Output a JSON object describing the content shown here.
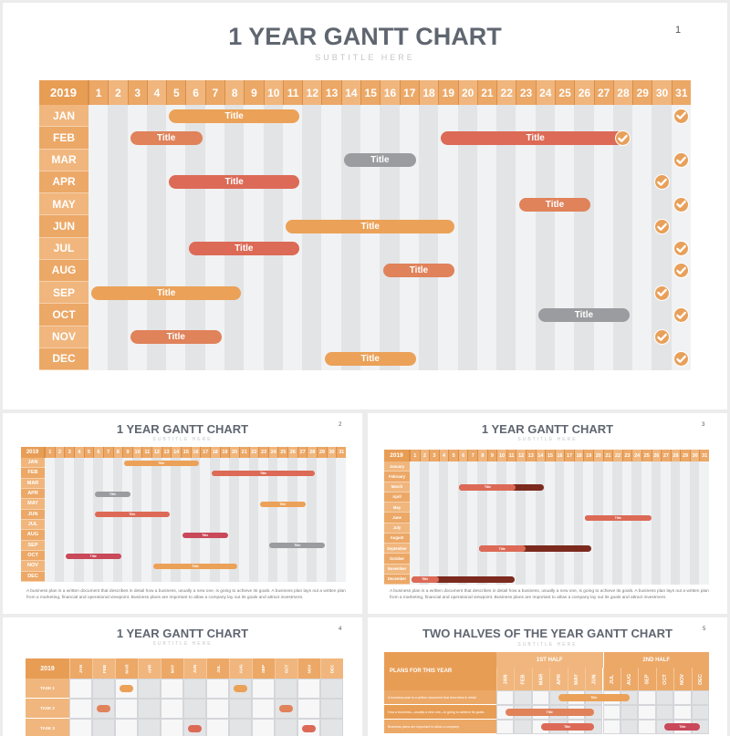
{
  "colors": {
    "header": "#eca867",
    "header_alt": "#f0b67d",
    "year_cell": "#e89d55",
    "col_light": "#f1f2f3",
    "col_dark": "#e3e4e6",
    "bar_orange": "#eba157",
    "bar_coral": "#e0825a",
    "bar_red": "#dc6a56",
    "bar_gray": "#9a9ca0",
    "bar_crimson": "#c9485a",
    "bar_darkred": "#7c2a1e",
    "check": "#e8a05a"
  },
  "slides": [
    {
      "title": "1 YEAR GANTT CHART",
      "subtitle": "SUBTITLE HERE",
      "number": "1"
    },
    {
      "title": "1 YEAR GANTT CHART",
      "subtitle": "SUBTITLE HERE",
      "number": "2",
      "paragraph": "A business plan is a written document that describes in detail how a business, usually a new one, is going to achieve its goals. A business plan lays out a written plan from a marketing, financial and operational viewpoint. Business plans are important to allow a company lay out its goals and attract investment."
    },
    {
      "title": "1 YEAR GANTT CHART",
      "subtitle": "SUBTITLE HERE",
      "number": "3",
      "paragraph": "A business plan is a written document that describes in detail how a business, usually a new one, is going to achieve its goals. A business plan lays out a written plan from a marketing, financial and operational viewpoint. Business plans are important to allow a company lay out its goals and attract investment."
    },
    {
      "title": "1 YEAR GANTT CHART",
      "subtitle": "SUBTITLE HERE",
      "number": "4"
    },
    {
      "title": "TWO HALVES OF THE YEAR GANTT CHART",
      "subtitle": "SUBTITLE HERE",
      "number": "5",
      "plans_label": "PLANS FOR THIS YEAR",
      "half1": "1ST HALF",
      "half2": "2ND HALF",
      "rows": [
        "A business plan is a written document that describes in detail",
        "How a business—usually a new one—is going to achieve its goals.",
        "Business plans are important to allow a company"
      ]
    }
  ],
  "chart_data": [
    {
      "type": "gantt",
      "title": "1 YEAR GANTT CHART",
      "subtitle": "SUBTITLE HERE",
      "year": "2019",
      "x": [
        "1",
        "2",
        "3",
        "4",
        "5",
        "6",
        "7",
        "8",
        "9",
        "10",
        "11",
        "12",
        "13",
        "14",
        "15",
        "16",
        "17",
        "18",
        "19",
        "20",
        "21",
        "22",
        "23",
        "24",
        "25",
        "26",
        "27",
        "28",
        "29",
        "30",
        "31"
      ],
      "categories": [
        "JAN",
        "FEB",
        "MAR",
        "APR",
        "MAY",
        "JUN",
        "JUL",
        "AUG",
        "SEP",
        "OCT",
        "NOV",
        "DEC"
      ],
      "tasks": [
        {
          "month": "JAN",
          "label": "Title",
          "start": 5,
          "end": 11,
          "color": "orange",
          "check_day": 31
        },
        {
          "month": "FEB",
          "label": "Title",
          "start": 3,
          "end": 6,
          "color": "coral",
          "check_day": null
        },
        {
          "month": "FEB",
          "label": "Title",
          "start": 19,
          "end": 28,
          "color": "red",
          "check_day": 28
        },
        {
          "month": "MAR",
          "label": "Title",
          "start": 14,
          "end": 17,
          "color": "gray",
          "check_day": 31
        },
        {
          "month": "APR",
          "label": "Title",
          "start": 5,
          "end": 11,
          "color": "red",
          "check_day": 30
        },
        {
          "month": "MAY",
          "label": "Title",
          "start": 23,
          "end": 26,
          "color": "coral",
          "check_day": 31
        },
        {
          "month": "JUN",
          "label": "Title",
          "start": 11,
          "end": 19,
          "color": "orange",
          "check_day": 30
        },
        {
          "month": "JUL",
          "label": "Title",
          "start": 6,
          "end": 11,
          "color": "red",
          "check_day": 31
        },
        {
          "month": "AUG",
          "label": "Title",
          "start": 16,
          "end": 19,
          "color": "coral",
          "check_day": 31
        },
        {
          "month": "SEP",
          "label": "Title",
          "start": 1,
          "end": 8,
          "color": "orange",
          "check_day": 30
        },
        {
          "month": "OCT",
          "label": "Title",
          "start": 24,
          "end": 28,
          "color": "gray",
          "check_day": 31
        },
        {
          "month": "NOV",
          "label": "Title",
          "start": 3,
          "end": 7,
          "color": "coral",
          "check_day": 30
        },
        {
          "month": "DEC",
          "label": "Title",
          "start": 13,
          "end": 17,
          "color": "orange",
          "check_day": 31
        }
      ]
    },
    {
      "type": "gantt",
      "title": "1 YEAR GANTT CHART",
      "year": "2019",
      "x": [
        "1",
        "2",
        "3",
        "4",
        "5",
        "6",
        "7",
        "8",
        "9",
        "10",
        "11",
        "12",
        "13",
        "14",
        "15",
        "16",
        "17",
        "18",
        "19",
        "20",
        "21",
        "22",
        "23",
        "24",
        "25",
        "26",
        "27",
        "28",
        "29",
        "30",
        "31"
      ],
      "categories": [
        "JAN",
        "FEB",
        "MAR",
        "APR",
        "MAY",
        "JUN",
        "JUL",
        "AUG",
        "SEP",
        "OCT",
        "NOV",
        "DEC"
      ],
      "tasks": [
        {
          "month": "JAN",
          "label": "Title",
          "start": 9,
          "end": 16,
          "color": "orange"
        },
        {
          "month": "FEB",
          "label": "Title",
          "start": 18,
          "end": 28,
          "color": "red"
        },
        {
          "month": "APR",
          "label": "Title",
          "start": 6,
          "end": 9,
          "color": "gray"
        },
        {
          "month": "MAY",
          "label": "Title",
          "start": 23,
          "end": 27,
          "color": "orange"
        },
        {
          "month": "JUN",
          "label": "Title",
          "start": 6,
          "end": 13,
          "color": "red"
        },
        {
          "month": "AUG",
          "label": "Title",
          "start": 15,
          "end": 19,
          "color": "crimson"
        },
        {
          "month": "SEP",
          "label": "Title",
          "start": 24,
          "end": 29,
          "color": "gray"
        },
        {
          "month": "OCT",
          "label": "Title",
          "start": 3,
          "end": 8,
          "color": "crimson"
        },
        {
          "month": "NOV",
          "label": "Title",
          "start": 12,
          "end": 20,
          "color": "orange"
        }
      ]
    },
    {
      "type": "gantt",
      "title": "1 YEAR GANTT CHART",
      "year": "2019",
      "x": [
        "1",
        "2",
        "3",
        "4",
        "5",
        "6",
        "7",
        "8",
        "9",
        "10",
        "11",
        "12",
        "13",
        "14",
        "15",
        "16",
        "17",
        "18",
        "19",
        "20",
        "21",
        "22",
        "23",
        "24",
        "25",
        "26",
        "27",
        "28",
        "29",
        "30",
        "31"
      ],
      "categories": [
        "January",
        "February",
        "March",
        "April",
        "May",
        "June",
        "July",
        "August",
        "September",
        "October",
        "November",
        "December"
      ],
      "tasks": [
        {
          "month": "March",
          "label": "Title",
          "start": 6,
          "end": 14,
          "progress_end": 11
        },
        {
          "month": "June",
          "label": "Title",
          "start": 19,
          "end": 25,
          "progress_end": 25
        },
        {
          "month": "September",
          "label": "Title",
          "start": 8,
          "end": 19,
          "progress_end": 12
        },
        {
          "month": "December",
          "label": "Title",
          "start": 1,
          "end": 11,
          "progress_end": 3
        }
      ]
    },
    {
      "type": "gantt",
      "title": "1 YEAR GANTT CHART",
      "year": "2019",
      "x": [
        "JAN",
        "FEB",
        "MAR",
        "APR",
        "MAY",
        "JUN",
        "JUL",
        "AUG",
        "SEP",
        "OCT",
        "NOV",
        "DEC"
      ],
      "categories": [
        "TASK 1",
        "TASK 2",
        "TASK 3"
      ],
      "tasks": [
        {
          "row": "TASK 1",
          "months": [
            "MAR",
            "AUG"
          ],
          "color": "orange"
        },
        {
          "row": "TASK 2",
          "months": [
            "FEB",
            "OCT"
          ],
          "color": "coral"
        },
        {
          "row": "TASK 3",
          "months": [
            "JUN",
            "NOV"
          ],
          "color": "red"
        }
      ]
    },
    {
      "type": "gantt",
      "title": "TWO HALVES OF THE YEAR GANTT CHART",
      "x": [
        "JAN",
        "FEB",
        "MAR",
        "APR",
        "MAY",
        "JUN",
        "JUL",
        "AUG",
        "SEP",
        "OCT",
        "NOV",
        "DEC"
      ],
      "groups": [
        "1ST HALF",
        "2ND HALF"
      ],
      "tasks": [
        {
          "row": 1,
          "label": "Title",
          "start": "APR",
          "end": "AUG",
          "color": "orange"
        },
        {
          "row": 2,
          "label": "Title",
          "start": "JAN",
          "end": "JUN",
          "color": "coral"
        },
        {
          "row": 3,
          "label": "Title",
          "start": "MAR",
          "end": "JUN",
          "color": "red"
        },
        {
          "row": 3,
          "label": "Title",
          "start": "OCT",
          "end": "DEC",
          "color": "crimson"
        }
      ]
    }
  ]
}
